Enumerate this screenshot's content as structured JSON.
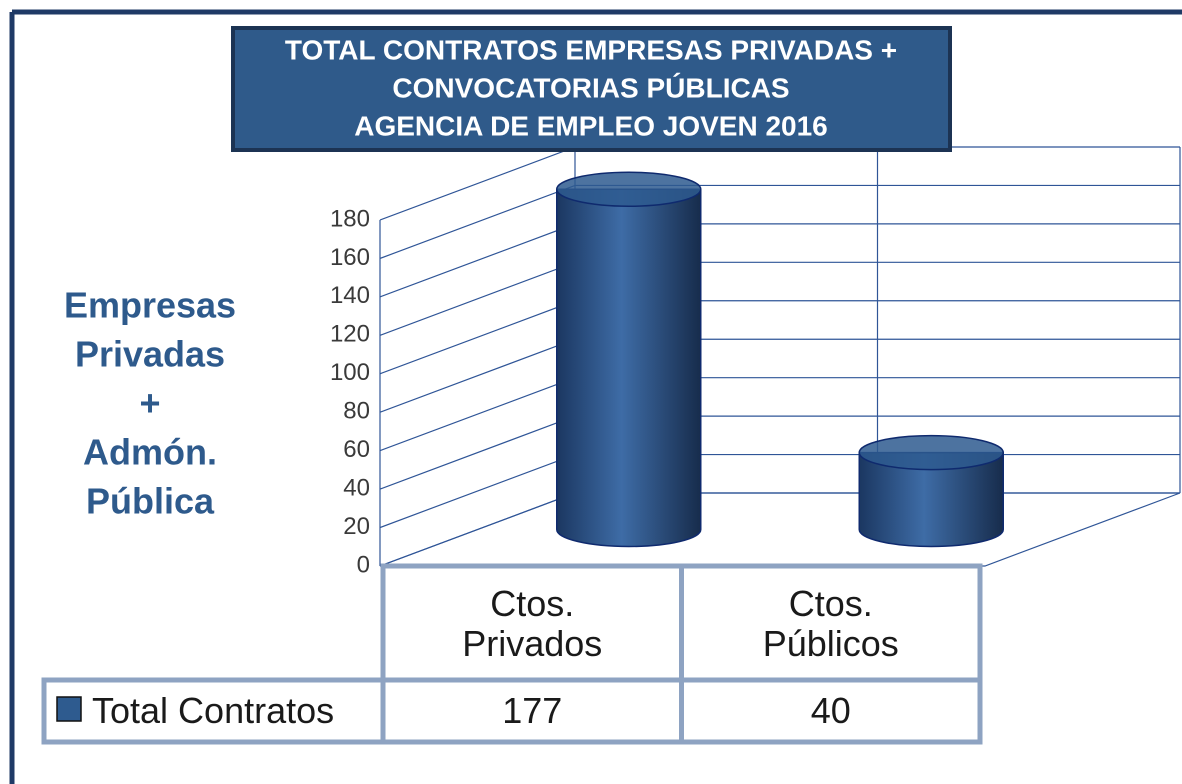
{
  "chart_data": {
    "type": "bar",
    "title": [
      "TOTAL CONTRATOS EMPRESAS PRIVADAS +",
      "CONVOCATORIAS PÚBLICAS",
      "AGENCIA DE EMPLEO JOVEN 2016"
    ],
    "y_label": [
      "Empresas",
      "Privadas",
      "+",
      "Admón.",
      "Pública"
    ],
    "categories": [
      "Ctos. Privados",
      "Ctos. Públicos"
    ],
    "series": [
      {
        "name": "Total Contratos",
        "color": "#2e5b8f",
        "values": [
          177,
          40
        ]
      }
    ],
    "ylim": [
      0,
      180
    ],
    "yticks": [
      0,
      20,
      40,
      60,
      80,
      100,
      120,
      140,
      160,
      180
    ],
    "grid": true
  }
}
